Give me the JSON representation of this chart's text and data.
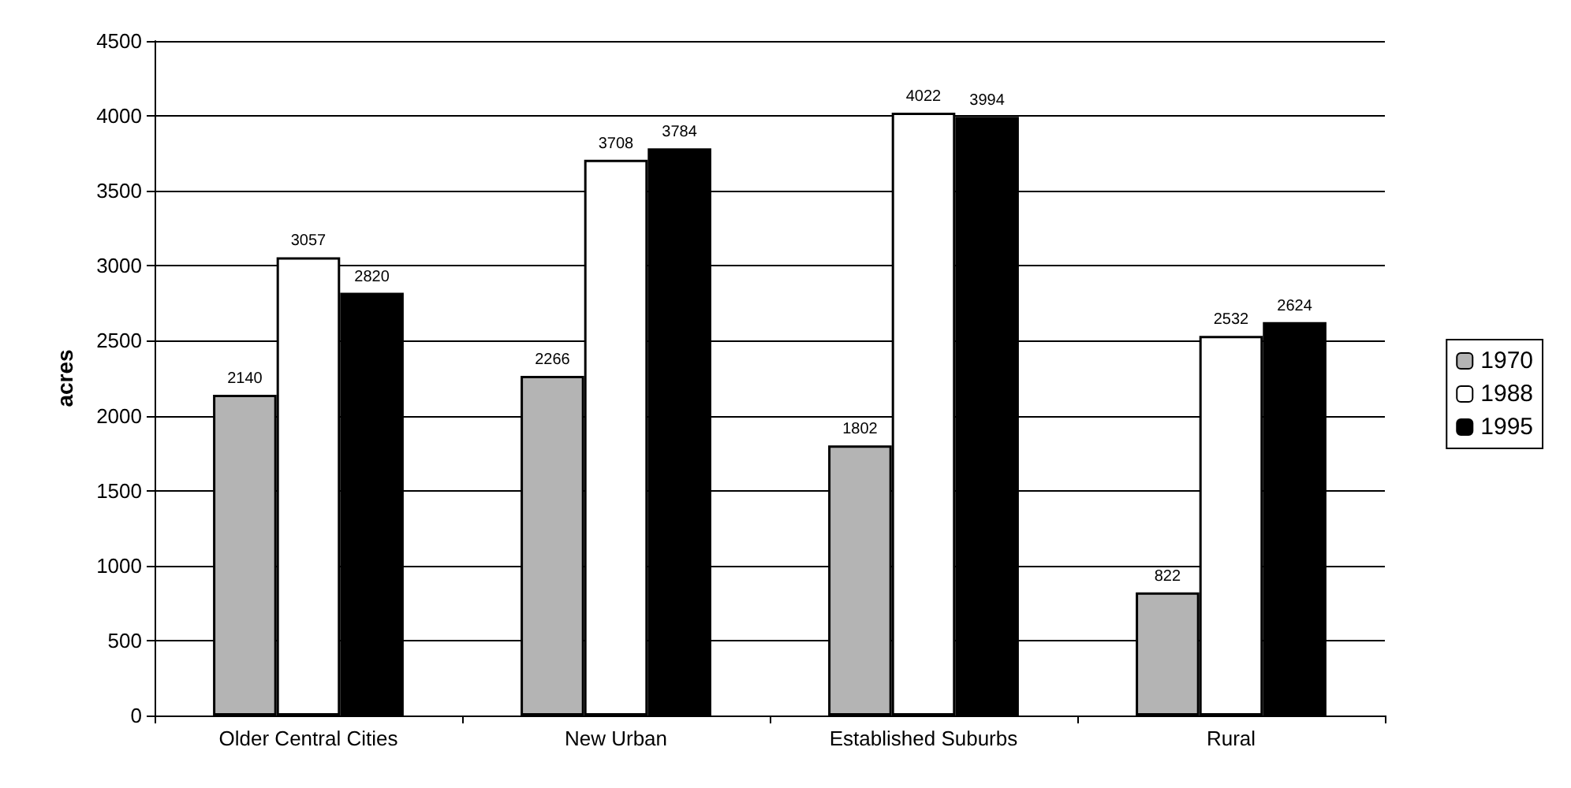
{
  "chart_data": {
    "type": "bar",
    "ylabel": "acres",
    "categories": [
      "Older Central Cities",
      "New Urban",
      "Established Suburbs",
      "Rural"
    ],
    "series": [
      {
        "name": "1970",
        "color": "#b4b4b4",
        "values": [
          2140,
          2266,
          1802,
          822
        ]
      },
      {
        "name": "1988",
        "color": "#ffffff",
        "values": [
          3057,
          3708,
          4022,
          2532
        ]
      },
      {
        "name": "1995",
        "color": "#000000",
        "values": [
          2820,
          3784,
          3994,
          2624
        ]
      }
    ],
    "ylim": [
      0,
      4500
    ],
    "yticks": [
      0,
      500,
      1000,
      1500,
      2000,
      2500,
      3000,
      3500,
      4000,
      4500
    ],
    "grid": "y",
    "legend": "right",
    "data_labels": true
  }
}
